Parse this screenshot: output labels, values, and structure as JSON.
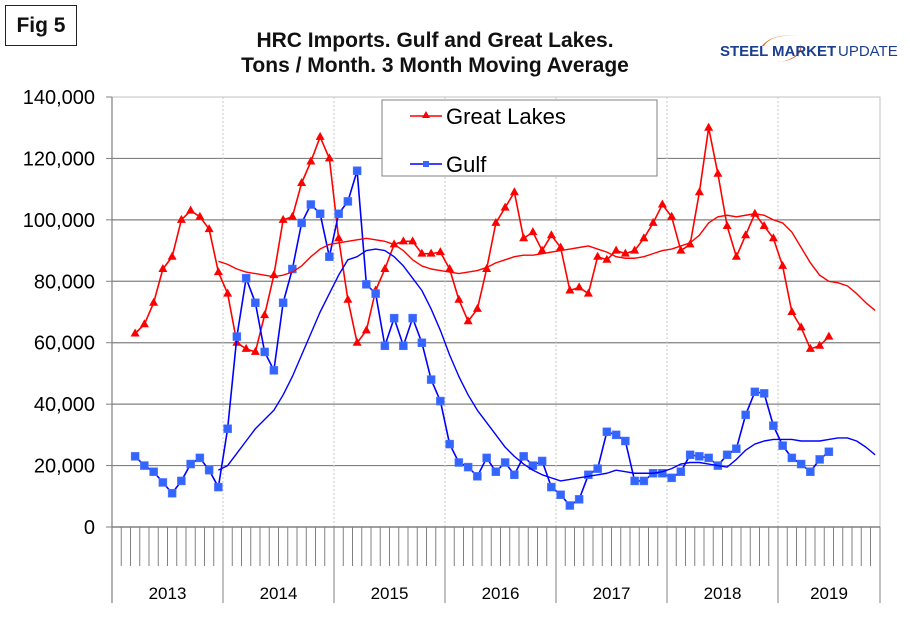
{
  "figure_label": "Fig 5",
  "logo_text": {
    "steel": "STEEL",
    "market": "MARKET",
    "update": "UPDATE"
  },
  "colors": {
    "great_lakes": "#ff0000",
    "gulf": "#0000ff",
    "gulf_marker": "#3366ff",
    "grid": "#808080"
  },
  "chart_data": {
    "type": "line",
    "title": [
      "HRC Imports. Gulf and Great Lakes.",
      "Tons / Month. 3 Month Moving Average"
    ],
    "xlabel": "",
    "ylabel": "",
    "ylim": [
      0,
      140000
    ],
    "yticks": [
      0,
      20000,
      40000,
      60000,
      80000,
      100000,
      120000,
      140000
    ],
    "ytick_labels": [
      "0",
      "20,000",
      "40,000",
      "60,000",
      "80,000",
      "100,000",
      "120,000",
      "140,000"
    ],
    "x_axis": {
      "start": "2013-01",
      "months": 83,
      "year_labels": [
        "2013",
        "2014",
        "2015",
        "2016",
        "2017",
        "2018",
        "2019"
      ]
    },
    "grid": "horizontal major gridlines, dotted vertical at year boundaries",
    "legend": {
      "placement": "top-center",
      "entries": [
        "Great Lakes",
        "Gulf"
      ]
    },
    "series": [
      {
        "name": "Great Lakes",
        "marker": "triangle",
        "start": "2013-03",
        "values": [
          63000,
          66000,
          73000,
          84000,
          88000,
          100000,
          103000,
          101000,
          97000,
          83000,
          76000,
          60000,
          58000,
          57000,
          69000,
          82000,
          100000,
          101000,
          112000,
          119000,
          127000,
          120000,
          94000,
          74000,
          60000,
          64000,
          77000,
          84000,
          92000,
          93000,
          93000,
          89000,
          89000,
          89500,
          84000,
          74000,
          67000,
          71000,
          84000,
          99000,
          104000,
          109000,
          94000,
          96000,
          90000,
          95000,
          91000,
          77000,
          78000,
          76000,
          88000,
          87000,
          90000,
          89000,
          90000,
          94000,
          99000,
          105000,
          101000,
          90000,
          92000,
          109000,
          130000,
          115000,
          98000,
          88000,
          95000,
          102000,
          98000,
          94000,
          85000,
          70000,
          65000,
          58000,
          59000,
          62000
        ]
      },
      {
        "name": "Gulf",
        "marker": "square",
        "start": "2013-03",
        "values": [
          23000,
          20000,
          18000,
          14500,
          11000,
          15000,
          20500,
          22500,
          18500,
          13000,
          32000,
          62000,
          81000,
          73000,
          57000,
          51000,
          73000,
          84000,
          99000,
          105000,
          102000,
          88000,
          102000,
          106000,
          116000,
          79000,
          76000,
          59000,
          68000,
          59000,
          68000,
          60000,
          48000,
          41000,
          27000,
          21000,
          19500,
          16500,
          22500,
          18000,
          21000,
          17000,
          23000,
          20000,
          21500,
          13000,
          10500,
          7000,
          9000,
          17000,
          19000,
          31000,
          30000,
          28000,
          15000,
          15000,
          17500,
          17500,
          16000,
          18000,
          23500,
          23000,
          22500,
          20000,
          23500,
          25500,
          36500,
          44000,
          43500,
          33000,
          26500,
          22500,
          20500,
          18000,
          22000,
          24500
        ]
      },
      {
        "name": "Great Lakes trend",
        "marker": "none",
        "start": "2013-12",
        "legend": false,
        "values": [
          86500,
          85500,
          84000,
          83000,
          82500,
          82000,
          81500,
          82000,
          83000,
          85000,
          88000,
          90500,
          92000,
          92500,
          93000,
          93500,
          94000,
          93500,
          93000,
          92000,
          90000,
          87000,
          85000,
          84000,
          83500,
          83000,
          82500,
          83000,
          83500,
          84500,
          86000,
          87000,
          88000,
          88500,
          88500,
          89000,
          89500,
          90000,
          90500,
          91000,
          91500,
          90500,
          89500,
          88000,
          87500,
          87500,
          88000,
          89000,
          90000,
          90500,
          91500,
          92500,
          95000,
          99000,
          101000,
          101500,
          101000,
          101500,
          102000,
          101500,
          100000,
          99000,
          96000,
          91000,
          86000,
          82000,
          80000,
          79500,
          78500,
          76000,
          73000,
          70500
        ]
      },
      {
        "name": "Gulf trend",
        "marker": "none",
        "start": "2013-12",
        "legend": false,
        "values": [
          18500,
          20000,
          24000,
          28000,
          32000,
          35000,
          38000,
          43000,
          49000,
          56000,
          63000,
          70000,
          76000,
          82000,
          87000,
          88000,
          90000,
          90500,
          90000,
          88000,
          85000,
          81000,
          77000,
          71000,
          64000,
          56000,
          49000,
          43000,
          38000,
          34000,
          30000,
          26000,
          23000,
          20500,
          18500,
          17000,
          16000,
          15000,
          15500,
          16000,
          16500,
          17000,
          17500,
          18500,
          18000,
          17500,
          17500,
          17500,
          18000,
          19000,
          20500,
          21000,
          21000,
          20500,
          20000,
          19500,
          22000,
          25000,
          27000,
          28000,
          28500,
          28500,
          28500,
          28000,
          28000,
          28000,
          28500,
          29000,
          29000,
          28000,
          26000,
          23500
        ]
      }
    ]
  }
}
